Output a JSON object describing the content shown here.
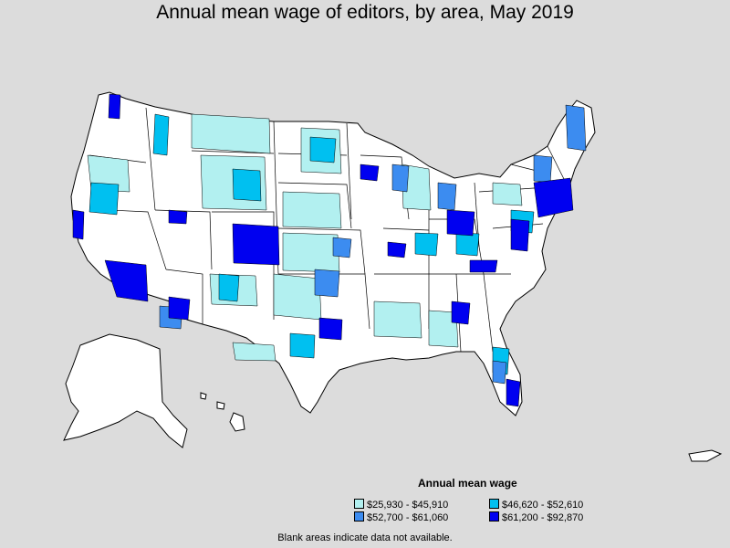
{
  "title": "Annual mean wage of editors, by area, May 2019",
  "legend": {
    "title": "Annual mean wage",
    "items": [
      {
        "label": "$25,930 - $45,910",
        "color": "#b2f0f0"
      },
      {
        "label": "$46,620 - $52,610",
        "color": "#00c0f0"
      },
      {
        "label": "$52,700 - $61,060",
        "color": "#3c8cf0"
      },
      {
        "label": "$61,200 - $92,870",
        "color": "#0000f0"
      }
    ]
  },
  "note": "Blank areas indicate data not available.",
  "colors": {
    "background": "#dcdcdc",
    "no_data": "#ffffff",
    "border": "#000000"
  }
}
